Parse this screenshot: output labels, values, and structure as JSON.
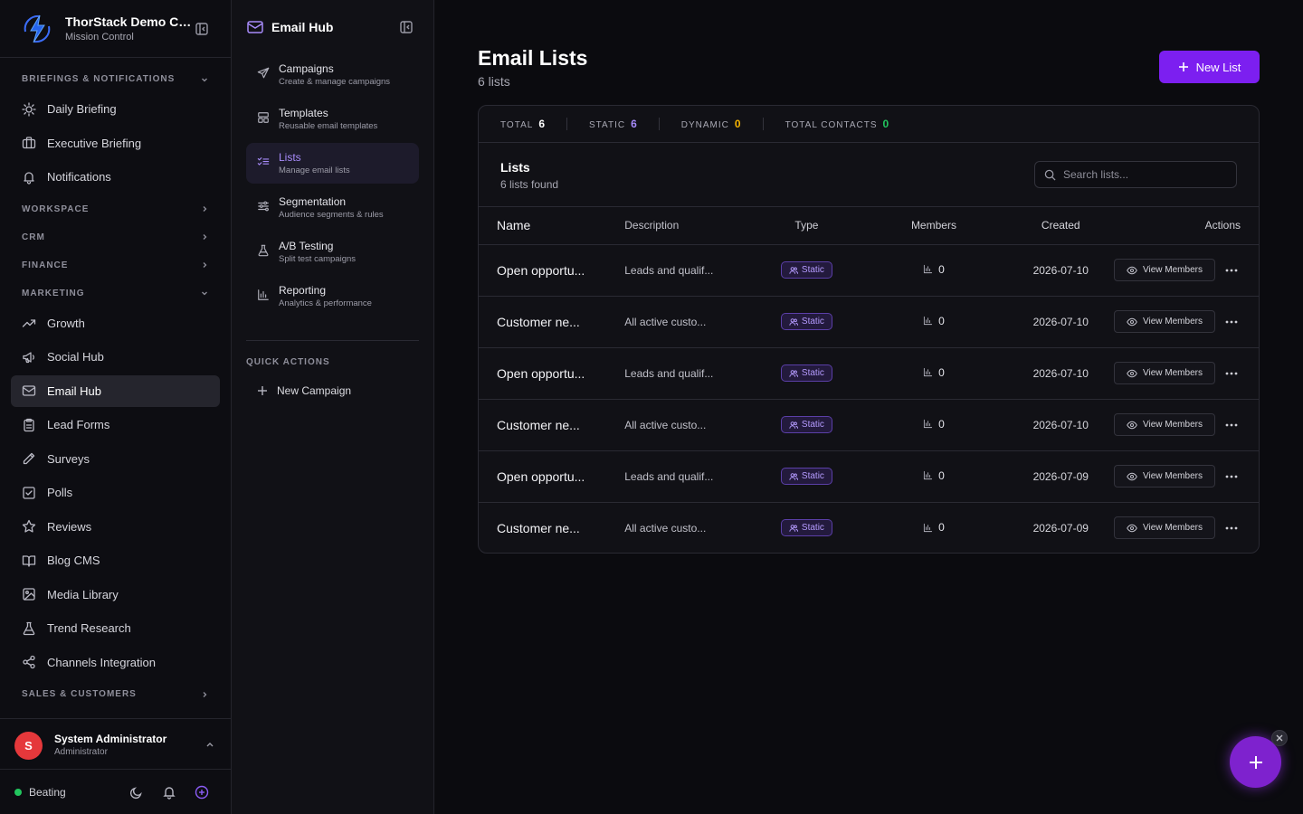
{
  "brand": {
    "title": "ThorStack Demo Company",
    "subtitle": "Mission Control",
    "logo_icon": "lightning-logo-icon",
    "accent": "#3b6cf6"
  },
  "sidebar": {
    "sections": [
      {
        "label": "BRIEFINGS & NOTIFICATIONS",
        "expanded": true,
        "items": [
          {
            "label": "Daily Briefing",
            "icon": "sun-icon"
          },
          {
            "label": "Executive Briefing",
            "icon": "briefcase-icon"
          },
          {
            "label": "Notifications",
            "icon": "bell-icon"
          }
        ]
      },
      {
        "label": "WORKSPACE",
        "expanded": false,
        "items": []
      },
      {
        "label": "CRM",
        "expanded": false,
        "items": []
      },
      {
        "label": "FINANCE",
        "expanded": false,
        "items": []
      },
      {
        "label": "MARKETING",
        "expanded": true,
        "items": [
          {
            "label": "Growth",
            "icon": "trending-up-icon"
          },
          {
            "label": "Social Hub",
            "icon": "megaphone-icon"
          },
          {
            "label": "Email Hub",
            "icon": "mail-icon",
            "active": true
          },
          {
            "label": "Lead Forms",
            "icon": "clipboard-icon"
          },
          {
            "label": "Surveys",
            "icon": "pen-icon"
          },
          {
            "label": "Polls",
            "icon": "check-square-icon"
          },
          {
            "label": "Reviews",
            "icon": "star-icon"
          },
          {
            "label": "Blog CMS",
            "icon": "book-icon"
          },
          {
            "label": "Media Library",
            "icon": "image-icon"
          },
          {
            "label": "Trend Research",
            "icon": "flask-icon"
          },
          {
            "label": "Channels Integration",
            "icon": "share-icon"
          }
        ]
      },
      {
        "label": "SALES & CUSTOMERS",
        "expanded": false,
        "items": []
      }
    ]
  },
  "user": {
    "initial": "S",
    "name": "System Administrator",
    "role": "Administrator"
  },
  "status": {
    "label": "Beating",
    "color": "#22c55e"
  },
  "subnav": {
    "title": "Email Hub",
    "items": [
      {
        "title": "Campaigns",
        "desc": "Create & manage campaigns",
        "icon": "send-icon"
      },
      {
        "title": "Templates",
        "desc": "Reusable email templates",
        "icon": "layout-icon"
      },
      {
        "title": "Lists",
        "desc": "Manage email lists",
        "icon": "list-checks-icon",
        "active": true
      },
      {
        "title": "Segmentation",
        "desc": "Audience segments & rules",
        "icon": "sliders-icon"
      },
      {
        "title": "A/B Testing",
        "desc": "Split test campaigns",
        "icon": "flask-icon"
      },
      {
        "title": "Reporting",
        "desc": "Analytics & performance",
        "icon": "bar-chart-icon"
      }
    ],
    "quick_actions_label": "QUICK ACTIONS",
    "quick_actions": [
      {
        "label": "New Campaign",
        "icon": "plus-icon"
      }
    ]
  },
  "main": {
    "title": "Email Lists",
    "subtitle": "6 lists",
    "new_button": "New List",
    "stats": [
      {
        "label": "TOTAL",
        "value": "6",
        "color": "#ffffff"
      },
      {
        "label": "STATIC",
        "value": "6",
        "color": "#a78bfa"
      },
      {
        "label": "DYNAMIC",
        "value": "0",
        "color": "#f5b301"
      },
      {
        "label": "TOTAL CONTACTS",
        "value": "0",
        "color": "#22c55e"
      }
    ],
    "list_title": "Lists",
    "list_count": "6 lists found",
    "search_placeholder": "Search lists...",
    "columns": [
      "Name",
      "Description",
      "Type",
      "Members",
      "Created",
      "Actions"
    ],
    "rows": [
      {
        "name": "Open opportu...",
        "desc": "Leads and qualif...",
        "type": "Static",
        "members": "0",
        "created": "2026-07-10",
        "action": "View Members"
      },
      {
        "name": "Customer ne...",
        "desc": "All active custo...",
        "type": "Static",
        "members": "0",
        "created": "2026-07-10",
        "action": "View Members"
      },
      {
        "name": "Open opportu...",
        "desc": "Leads and qualif...",
        "type": "Static",
        "members": "0",
        "created": "2026-07-10",
        "action": "View Members"
      },
      {
        "name": "Customer ne...",
        "desc": "All active custo...",
        "type": "Static",
        "members": "0",
        "created": "2026-07-10",
        "action": "View Members"
      },
      {
        "name": "Open opportu...",
        "desc": "Leads and qualif...",
        "type": "Static",
        "members": "0",
        "created": "2026-07-09",
        "action": "View Members"
      },
      {
        "name": "Customer ne...",
        "desc": "All active custo...",
        "type": "Static",
        "members": "0",
        "created": "2026-07-09",
        "action": "View Members"
      }
    ]
  },
  "fab": {
    "icon": "plus-icon",
    "close_icon": "close-icon",
    "color": "#7e22ce"
  }
}
